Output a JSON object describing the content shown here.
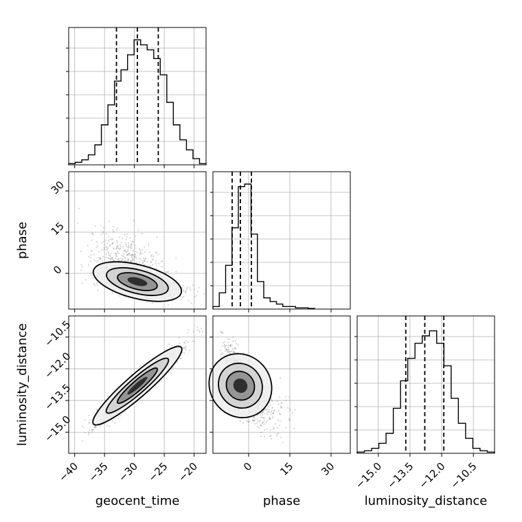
{
  "chart_data": {
    "type": "corner",
    "title": "",
    "parameters": [
      "geocent_time",
      "phase",
      "luminosity_distance"
    ],
    "ranges": {
      "geocent_time": [
        -41,
        -18
      ],
      "phase": [
        -13,
        37
      ],
      "luminosity_distance": [
        -16,
        -9.5
      ]
    },
    "ticks": {
      "geocent_time": [
        -40,
        -35,
        -30,
        -25,
        -20
      ],
      "phase": [
        0,
        15,
        30
      ],
      "luminosity_distance": [
        -15.0,
        -13.5,
        -12.0,
        -10.5
      ]
    },
    "tick_labels": {
      "geocent_time": [
        "−40",
        "−35",
        "−30",
        "−25",
        "−20"
      ],
      "phase": [
        "0",
        "15",
        "30"
      ],
      "luminosity_distance": [
        "−15.0",
        "−13.5",
        "−12.0",
        "−10.5"
      ]
    },
    "quantiles": {
      "geocent_time": [
        -33.0,
        -29.5,
        -26.0
      ],
      "phase": [
        -6.0,
        -3.0,
        1.0
      ],
      "luminosity_distance": [
        -13.7,
        -12.8,
        -11.9
      ]
    },
    "histograms": {
      "geocent_time": [
        0.01,
        0.02,
        0.04,
        0.08,
        0.16,
        0.32,
        0.48,
        0.67,
        0.76,
        0.88,
        1.0,
        0.96,
        0.92,
        0.85,
        0.72,
        0.5,
        0.32,
        0.2,
        0.12,
        0.05,
        0.01
      ],
      "phase": [
        0.02,
        0.13,
        0.35,
        0.65,
        0.98,
        1.0,
        0.6,
        0.22,
        0.09,
        0.06,
        0.04,
        0.02,
        0.02,
        0.01,
        0.01,
        0.005
      ],
      "luminosity_distance": [
        0.01,
        0.02,
        0.04,
        0.08,
        0.16,
        0.36,
        0.58,
        0.76,
        0.88,
        0.94,
        0.98,
        0.88,
        0.7,
        0.44,
        0.24,
        0.12,
        0.04,
        0.02,
        0.01
      ]
    },
    "correlations": {
      "geocent_time_vs_phase": -0.55,
      "geocent_time_vs_luminosity_distance": 0.96,
      "phase_vs_luminosity_distance": -0.65
    },
    "grid": true,
    "colors": {
      "line": "#000000",
      "grid": "#b0b0b0",
      "samples": "#888888"
    }
  }
}
